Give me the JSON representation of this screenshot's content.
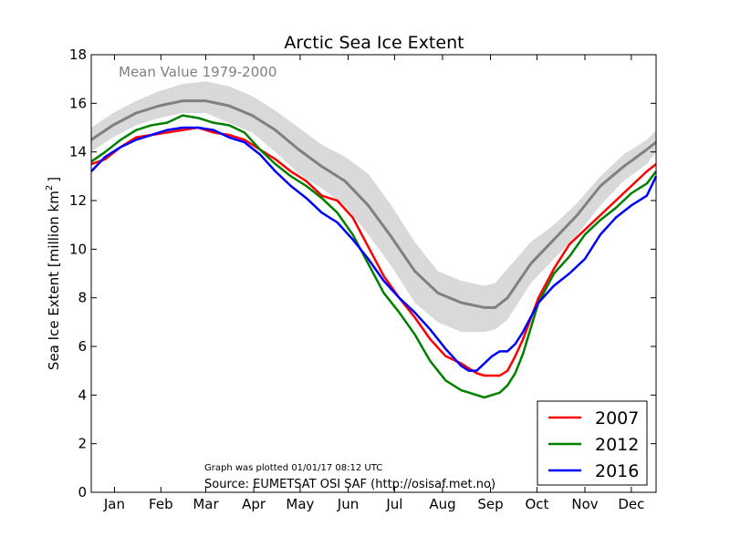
{
  "chart_data": {
    "type": "line",
    "title": "Arctic Sea Ice Extent",
    "ylabel_main": "Sea Ice Extent [million km",
    "ylabel_sup": "2",
    "ylabel_end": "]",
    "xlabel": "",
    "ylim": [
      0,
      18
    ],
    "xlim": [
      1,
      366
    ],
    "yticks": [
      0,
      2,
      4,
      6,
      8,
      10,
      12,
      14,
      16,
      18
    ],
    "months": [
      "Jan",
      "Feb",
      "Mar",
      "Apr",
      "May",
      "Jun",
      "Jul",
      "Aug",
      "Sep",
      "Oct",
      "Nov",
      "Dec"
    ],
    "month_day": [
      16,
      46,
      75,
      106,
      136,
      167,
      197,
      228,
      259,
      289,
      320,
      350
    ],
    "grid": false,
    "legend_position": "bottom-right",
    "mean_label": "Mean Value 1979-2000",
    "plotted_note": "Graph was plotted 01/01/17 08:12 UTC",
    "source_note": "Source: EUMETSAT OSI SAF (http://osisaf.met.no)",
    "mean": {
      "color": "#808080",
      "band_color": "#d9d9d9",
      "x": [
        1,
        15,
        30,
        45,
        60,
        75,
        90,
        105,
        120,
        135,
        150,
        165,
        180,
        195,
        210,
        225,
        240,
        255,
        262,
        270,
        285,
        300,
        315,
        330,
        345,
        360,
        366
      ],
      "y": [
        14.5,
        15.1,
        15.6,
        15.9,
        16.1,
        16.1,
        15.9,
        15.5,
        14.9,
        14.1,
        13.4,
        12.8,
        11.8,
        10.5,
        9.1,
        8.2,
        7.8,
        7.6,
        7.6,
        8.0,
        9.4,
        10.4,
        11.4,
        12.6,
        13.4,
        14.1,
        14.4
      ],
      "upper": [
        15.0,
        15.6,
        16.1,
        16.5,
        16.8,
        16.9,
        16.7,
        16.3,
        15.7,
        15.0,
        14.3,
        13.8,
        13.1,
        11.8,
        10.3,
        9.1,
        8.7,
        8.5,
        8.6,
        9.2,
        10.3,
        11.0,
        11.9,
        13.0,
        13.9,
        14.5,
        14.9
      ],
      "lower": [
        14.0,
        14.6,
        15.1,
        15.4,
        15.6,
        15.6,
        15.2,
        14.8,
        14.0,
        13.1,
        12.5,
        11.8,
        10.6,
        9.3,
        7.8,
        7.0,
        6.6,
        6.6,
        6.7,
        7.1,
        8.6,
        9.6,
        10.6,
        11.8,
        12.8,
        13.5,
        14.0
      ]
    },
    "series": [
      {
        "name": "2007",
        "color": "#ff0000",
        "x": [
          1,
          10,
          20,
          30,
          40,
          50,
          60,
          70,
          80,
          90,
          100,
          110,
          120,
          130,
          140,
          150,
          160,
          170,
          180,
          190,
          200,
          210,
          220,
          230,
          240,
          250,
          255,
          260,
          265,
          270,
          275,
          280,
          290,
          300,
          310,
          320,
          330,
          340,
          350,
          360,
          366
        ],
        "y": [
          13.5,
          13.7,
          14.2,
          14.6,
          14.7,
          14.8,
          14.9,
          15.0,
          14.8,
          14.7,
          14.5,
          14.1,
          13.7,
          13.2,
          12.8,
          12.2,
          12.0,
          11.3,
          10.1,
          8.9,
          8.0,
          7.2,
          6.3,
          5.6,
          5.3,
          4.9,
          4.8,
          4.8,
          4.8,
          5.0,
          5.6,
          6.3,
          8.0,
          9.2,
          10.2,
          10.8,
          11.4,
          12.0,
          12.6,
          13.2,
          13.5
        ]
      },
      {
        "name": "2012",
        "color": "#008000",
        "x": [
          1,
          10,
          20,
          30,
          40,
          50,
          60,
          70,
          80,
          90,
          100,
          110,
          120,
          130,
          140,
          150,
          160,
          170,
          180,
          190,
          200,
          210,
          220,
          230,
          240,
          250,
          255,
          260,
          265,
          270,
          275,
          280,
          290,
          300,
          310,
          320,
          330,
          340,
          350,
          360,
          366
        ],
        "y": [
          13.6,
          14.0,
          14.5,
          14.9,
          15.1,
          15.2,
          15.5,
          15.4,
          15.2,
          15.1,
          14.8,
          14.1,
          13.5,
          13.0,
          12.6,
          12.1,
          11.5,
          10.6,
          9.4,
          8.2,
          7.4,
          6.5,
          5.4,
          4.6,
          4.2,
          4.0,
          3.9,
          4.0,
          4.1,
          4.4,
          4.9,
          5.7,
          7.8,
          9.0,
          9.7,
          10.6,
          11.2,
          11.7,
          12.3,
          12.7,
          13.2
        ]
      },
      {
        "name": "2016",
        "color": "#0000ff",
        "x": [
          1,
          10,
          20,
          30,
          40,
          50,
          60,
          70,
          80,
          90,
          100,
          110,
          120,
          130,
          140,
          150,
          160,
          170,
          180,
          190,
          200,
          210,
          220,
          230,
          240,
          245,
          250,
          255,
          260,
          265,
          270,
          275,
          280,
          290,
          300,
          310,
          320,
          330,
          340,
          350,
          360,
          366
        ],
        "y": [
          13.2,
          13.8,
          14.2,
          14.5,
          14.7,
          14.9,
          15.0,
          15.0,
          14.9,
          14.6,
          14.4,
          13.9,
          13.2,
          12.6,
          12.1,
          11.5,
          11.1,
          10.4,
          9.6,
          8.7,
          8.0,
          7.4,
          6.7,
          5.9,
          5.2,
          5.0,
          5.0,
          5.3,
          5.6,
          5.8,
          5.8,
          6.1,
          6.6,
          7.8,
          8.5,
          9.0,
          9.6,
          10.6,
          11.3,
          11.8,
          12.2,
          13.0
        ]
      }
    ]
  }
}
